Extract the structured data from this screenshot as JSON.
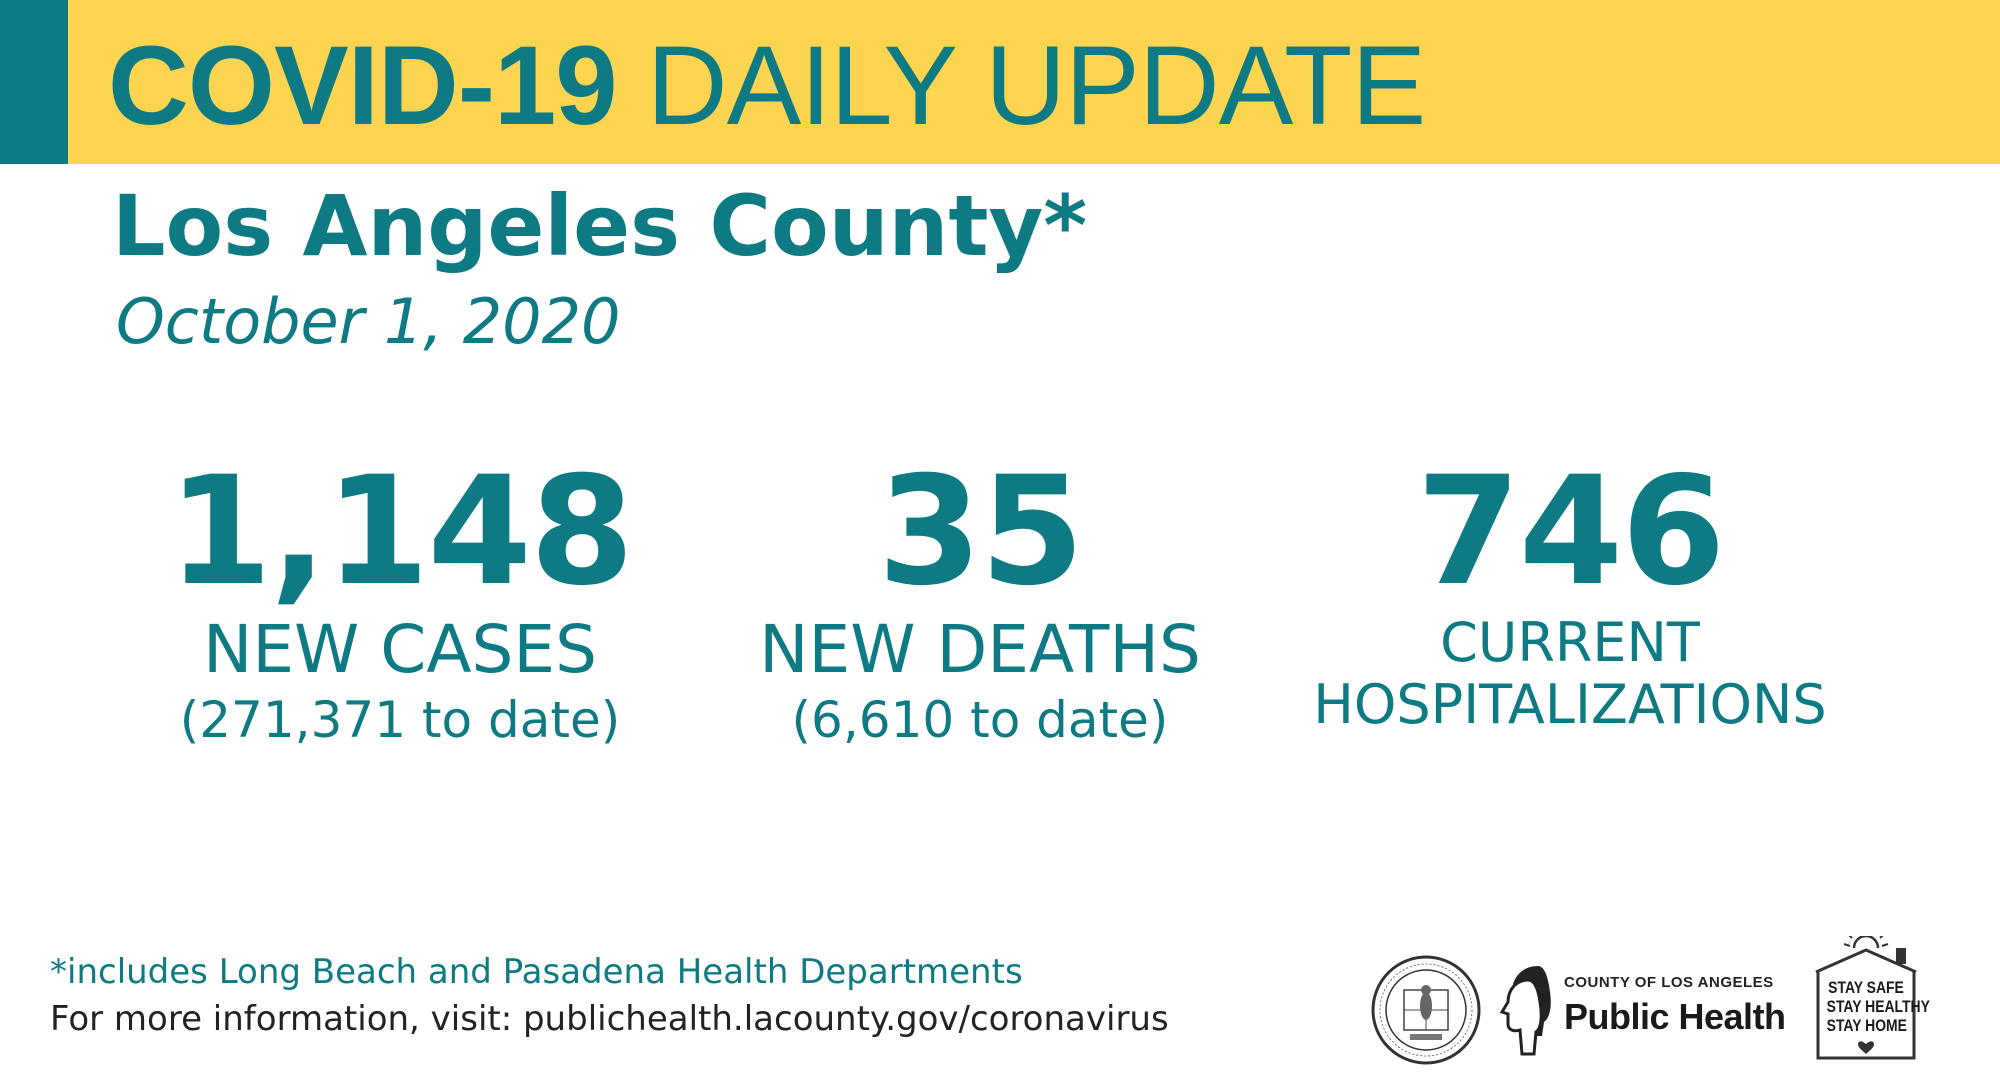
{
  "banner": {
    "title_bold": "COVID-19",
    "title_light": "DAILY UPDATE"
  },
  "region": "Los Angeles County*",
  "date": "October 1, 2020",
  "stats": {
    "cases": {
      "value": "1,148",
      "label": "NEW CASES",
      "to_date": "(271,371 to date)"
    },
    "deaths": {
      "value": "35",
      "label": "NEW DEATHS",
      "to_date": "(6,610 to date)"
    },
    "hospitalizations": {
      "value": "746",
      "label_line1": "CURRENT",
      "label_line2": "HOSPITALIZATIONS"
    }
  },
  "footer": {
    "footnote": "*includes Long Beach and Pasadena Health Departments",
    "more_info": "For more information, visit: publichealth.lacounty.gov/coronavirus"
  },
  "logos": {
    "seal": {
      "icon": "county-seal-icon",
      "text": "COUNTY OF LOS ANGELES · CALIFORNIA"
    },
    "public_health": {
      "line1": "COUNTY OF LOS ANGELES",
      "line2": "Public Health"
    },
    "stay_safe": {
      "line1": "STAY SAFE",
      "line2": "STAY HEALTHY",
      "line3": "STAY HOME"
    }
  },
  "colors": {
    "brand_teal": "#0e7b84",
    "banner_yellow": "#fcd44f",
    "text_dark": "#222222"
  }
}
